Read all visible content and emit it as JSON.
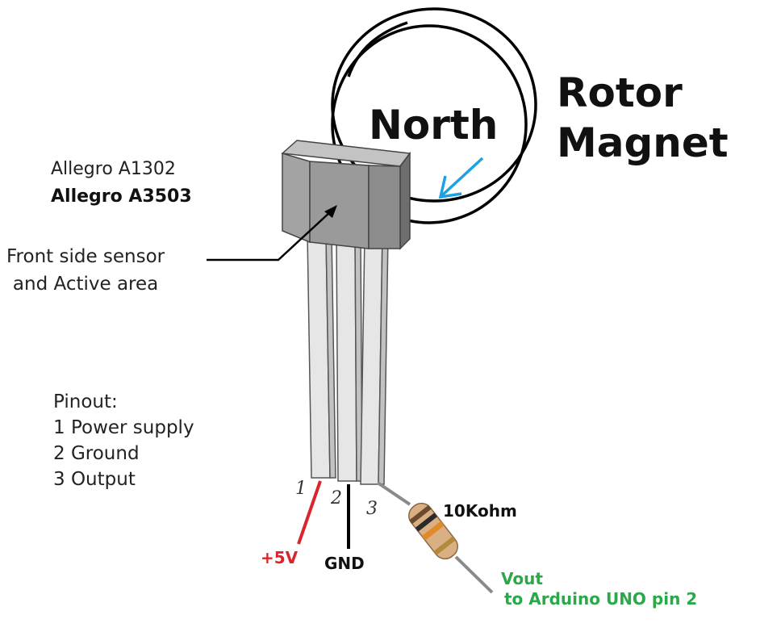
{
  "labels": {
    "part_a1302": "Allegro A1302",
    "part_a3503": "Allegro A3503",
    "sensor_line1": "Front side sensor",
    "sensor_line2": "and  Active area",
    "north": "North",
    "rotor_line1": "Rotor",
    "rotor_line2": "Magnet",
    "resistor": "10Kohm",
    "supply": "+5V",
    "ground": "GND",
    "vout_line1": "Vout",
    "vout_line2": "to Arduino UNO pin 2"
  },
  "pinout": {
    "title": "Pinout:",
    "pins": [
      "1 Power supply",
      "2 Ground",
      "3 Output"
    ]
  },
  "pin_numbers": [
    "1",
    "2",
    "3"
  ],
  "colors": {
    "supply_wire": "#d9262d",
    "vout_text": "#2aa84a",
    "field_arrow": "#1ea0e6",
    "sensor_body": "#9a9a9a"
  }
}
